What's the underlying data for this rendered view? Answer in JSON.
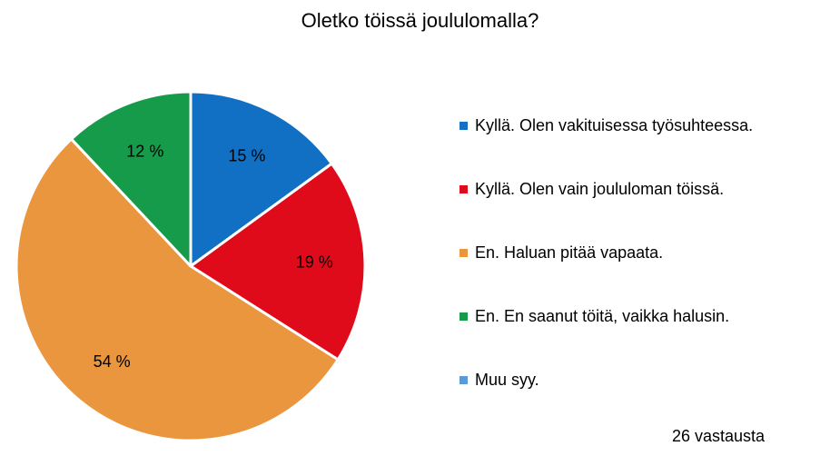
{
  "chart_data": {
    "type": "pie",
    "title": "Oletko töissä joululomalla?",
    "slices": [
      {
        "name": "Kyllä. Olen vakituisessa työsuhteessa.",
        "value": 15,
        "label": "15 %",
        "color": "#1170C4"
      },
      {
        "name": "Kyllä. Olen vain joululoman töissä.",
        "value": 19,
        "label": "19 %",
        "color": "#E00B1A"
      },
      {
        "name": "En. Haluan pitää vapaata.",
        "value": 54,
        "label": "54 %",
        "color": "#EA963E"
      },
      {
        "name": "En. En saanut töitä, vaikka halusin.",
        "value": 12,
        "label": "12 %",
        "color": "#169B4A"
      },
      {
        "name": "Muu syy.",
        "value": 0,
        "label": "",
        "color": "#5B9BD5"
      }
    ],
    "legend_position": "right",
    "response_count": "26 vastausta"
  }
}
